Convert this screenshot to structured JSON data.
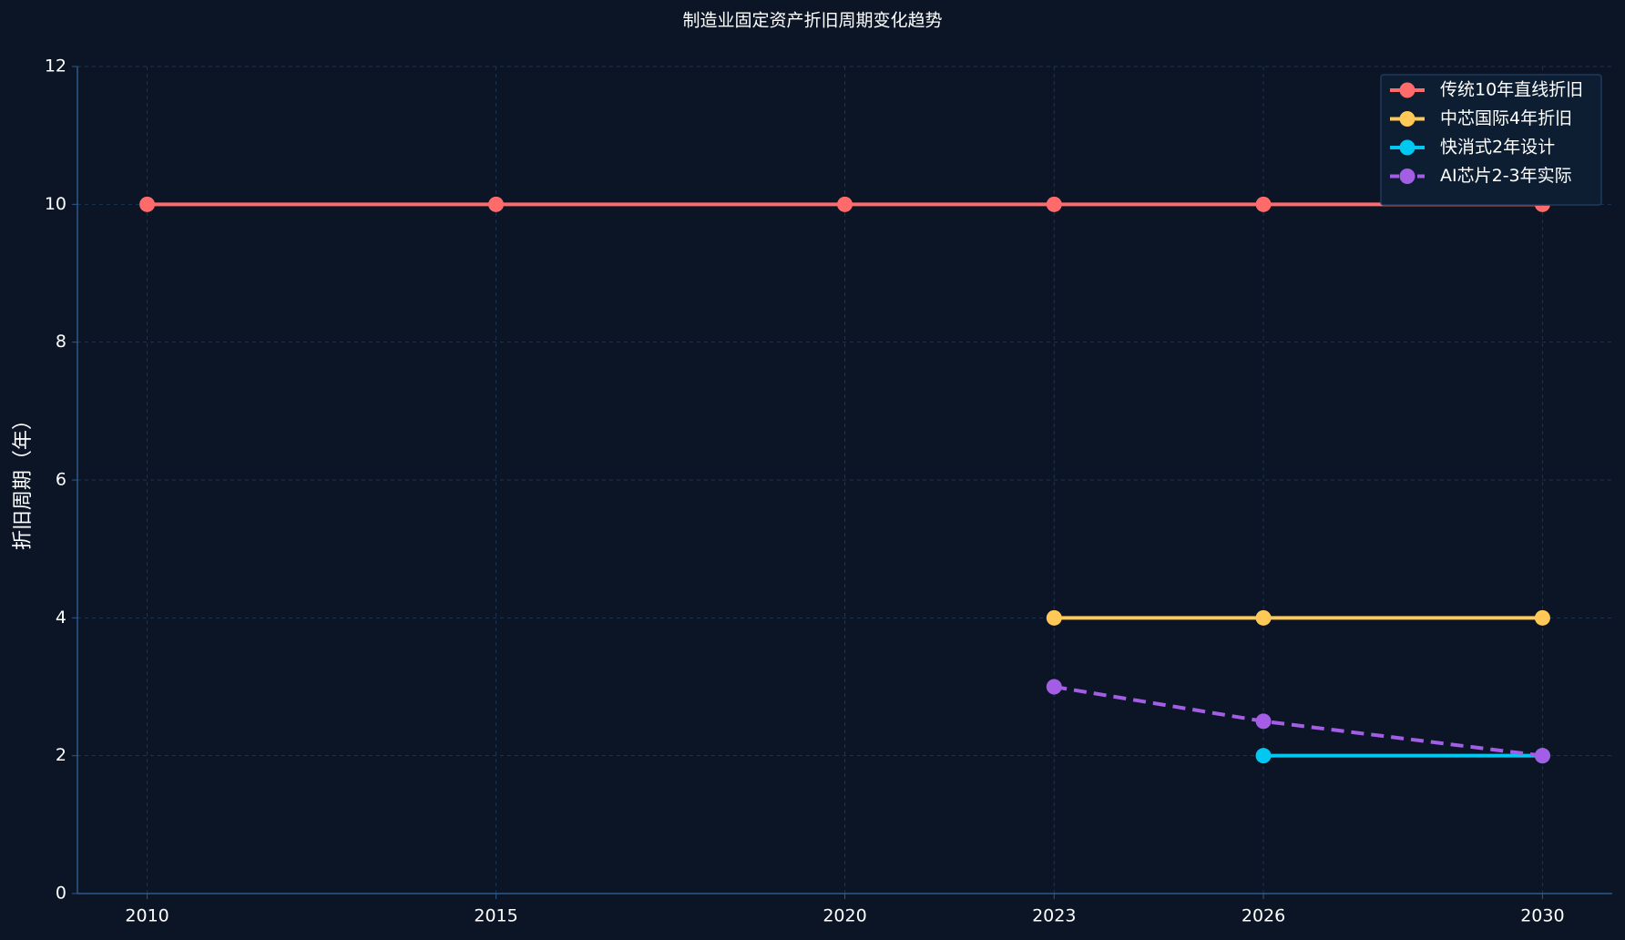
{
  "chart_data": {
    "type": "line",
    "title": "制造业固定资产折旧周期变化趋势",
    "y_label": "折旧周期（年）",
    "x": [
      2010,
      2015,
      2020,
      2023,
      2026,
      2030
    ],
    "series": [
      {
        "name": "传统10年直线折旧",
        "color": "#ff6b6b",
        "linestyle": "solid",
        "values": [
          10,
          10,
          10,
          10,
          10,
          10
        ]
      },
      {
        "name": "中芯国际4年折旧",
        "color": "#ffc857",
        "linestyle": "solid",
        "values": [
          null,
          null,
          null,
          4,
          4,
          4
        ]
      },
      {
        "name": "快消式2年设计",
        "color": "#00c8f0",
        "linestyle": "solid",
        "values": [
          null,
          null,
          null,
          null,
          2,
          2
        ]
      },
      {
        "name": "AI芯片2-3年实际",
        "color": "#a45ee5",
        "linestyle": "dashed",
        "values": [
          null,
          null,
          null,
          3,
          2.5,
          2
        ]
      }
    ],
    "xlim": [
      2009,
      2031
    ],
    "xticks": [
      2010,
      2015,
      2020,
      2023,
      2026,
      2030
    ],
    "ylim": [
      0,
      12
    ],
    "yticks": [
      0,
      2,
      4,
      6,
      8,
      10,
      12
    ],
    "grid": true,
    "legend": "upper right"
  }
}
